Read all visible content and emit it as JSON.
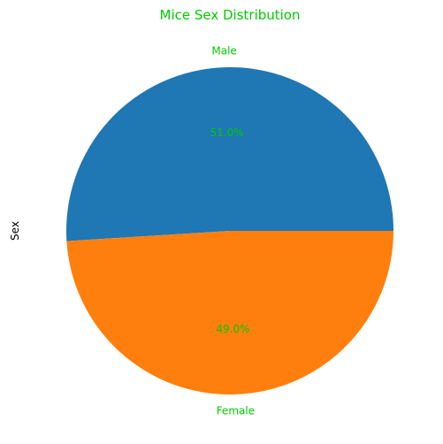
{
  "chart_data": {
    "type": "pie",
    "title": "Mice Sex Distribution",
    "ylabel": "Sex",
    "slices": [
      {
        "label": "Male",
        "value": 51.0,
        "pct_label": "51.0%",
        "color": "#1f77b4"
      },
      {
        "label": "Female",
        "value": 49.0,
        "pct_label": "49.0%",
        "color": "#ff7f0e"
      }
    ],
    "start_angle_deg": 0,
    "direction": "counterclockwise",
    "text_color": "#00cc00",
    "axis_label_color": "#000000"
  }
}
